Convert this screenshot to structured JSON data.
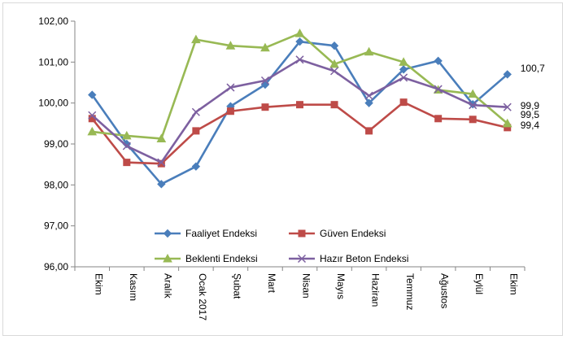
{
  "chart_data": {
    "type": "line",
    "categories": [
      "Ekim",
      "Kasım",
      "Aralık",
      "Ocak 2017",
      "Şubat",
      "Mart",
      "Nisan",
      "Mayıs",
      "Haziran",
      "Temmuz",
      "Ağustos",
      "Eylül",
      "Ekim"
    ],
    "ylim": [
      96,
      102
    ],
    "yticks": [
      "96,00",
      "97,00",
      "98,00",
      "99,00",
      "100,00",
      "101,00",
      "102,00"
    ],
    "grid": false,
    "legend_position": "bottom-center",
    "series": [
      {
        "name": "Faaliyet Endeksi",
        "color": "#4a7ebb",
        "marker": "diamond",
        "values": [
          100.2,
          99.0,
          98.02,
          98.45,
          99.92,
          100.45,
          101.5,
          101.4,
          100.0,
          100.82,
          101.03,
          99.97,
          100.7
        ]
      },
      {
        "name": "Güven Endeksi",
        "color": "#be4b48",
        "marker": "square",
        "values": [
          99.62,
          98.55,
          98.52,
          99.32,
          99.8,
          99.9,
          99.96,
          99.96,
          99.32,
          100.02,
          99.62,
          99.6,
          99.4
        ]
      },
      {
        "name": "Beklenti Endeksi",
        "color": "#98b954",
        "marker": "triangle",
        "values": [
          99.3,
          99.2,
          99.13,
          101.55,
          101.4,
          101.35,
          101.7,
          100.95,
          101.25,
          101.0,
          100.32,
          100.22,
          99.5
        ]
      },
      {
        "name": "Hazır Beton Endeksi",
        "color": "#7d60a0",
        "marker": "x",
        "values": [
          99.7,
          98.95,
          98.55,
          99.78,
          100.38,
          100.55,
          101.06,
          100.78,
          100.18,
          100.62,
          100.34,
          99.95,
          99.9
        ]
      }
    ],
    "end_labels": [
      "100,7",
      "99,9",
      "99,5",
      "99,4"
    ]
  }
}
